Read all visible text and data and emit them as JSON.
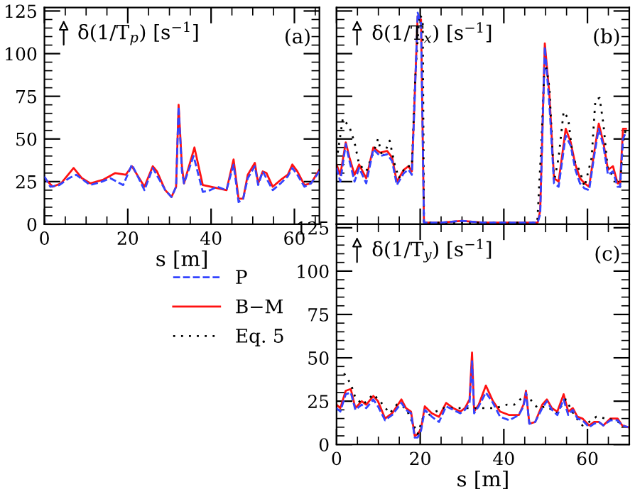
{
  "chart_data": [
    {
      "type": "line",
      "xlabel": "s [m]",
      "xlim": [
        0,
        66
      ],
      "xticks": [
        0,
        20,
        40,
        60
      ],
      "ylim": [
        0,
        127
      ],
      "yticks": [
        0,
        25,
        50,
        75,
        100,
        125
      ],
      "grid": false,
      "legend": false,
      "marker": "none",
      "annotations": [
        "δ(1/T$_{p}$) [s$^{−1}$]",
        "(a)"
      ],
      "series": [
        {
          "color": "#3344ff",
          "line_style": "dashed",
          "x": [
            0,
            1.4,
            3.6,
            5.9,
            7.6,
            9.3,
            11,
            13.8,
            15.8,
            18.9,
            21,
            24,
            26,
            29,
            30.5,
            31.6,
            32.2,
            33,
            33.5,
            35.8,
            38,
            39.8,
            41.5,
            43.7,
            45.4,
            46.6,
            47.7,
            48.8,
            50.5,
            51.3,
            52.4,
            54.8,
            56.7,
            58.4,
            59.5,
            60.7,
            62.4,
            64,
            66
          ],
          "values": [
            28,
            22,
            23,
            27,
            29,
            26,
            23,
            25,
            27,
            23,
            35,
            20,
            33,
            20,
            16,
            22,
            69,
            31,
            24,
            40,
            19,
            20,
            22,
            20,
            35,
            13,
            15,
            27,
            34,
            23,
            31,
            20,
            24,
            28,
            33,
            29,
            22,
            24,
            31
          ]
        },
        {
          "color": "#ff1111",
          "line_style": "solid",
          "x": [
            0,
            2,
            4,
            7,
            9,
            11,
            14,
            17,
            19.5,
            21,
            24,
            26,
            27,
            29,
            30.5,
            31.6,
            32.2,
            33,
            33.5,
            36,
            38,
            40,
            43.7,
            45.4,
            46.6,
            47.7,
            48.8,
            50.5,
            51.3,
            52.4,
            53.3,
            54.8,
            56.7,
            58.4,
            59.5,
            60.7,
            62.4,
            64,
            66
          ],
          "values": [
            27,
            22,
            24,
            33,
            27,
            24,
            26,
            30,
            29,
            34,
            22,
            34,
            31,
            20,
            16,
            22,
            70,
            34,
            24,
            45,
            23,
            22,
            20,
            38,
            15,
            15,
            29,
            36,
            24,
            31,
            30,
            22,
            26,
            29,
            35,
            31,
            23,
            24,
            32
          ]
        }
      ]
    },
    {
      "type": "line",
      "xlim": [
        0,
        70
      ],
      "xticks": [
        0,
        20,
        40,
        60
      ],
      "ylim": [
        0,
        127
      ],
      "yticks": [
        0,
        25,
        50,
        75,
        100,
        125
      ],
      "tick_labels": false,
      "grid": false,
      "legend": false,
      "marker": "none",
      "annotations": [
        "δ(1/T$_{x}$) [s$^{−1}$]",
        "(b)"
      ],
      "series": [
        {
          "color": "#3344ff",
          "line_style": "dashed",
          "x": [
            0,
            0.9,
            2.2,
            3.1,
            4.3,
            5.4,
            7.1,
            8.8,
            10.4,
            12.1,
            13.3,
            14.4,
            16.1,
            17.2,
            18,
            18.7,
            19.4,
            20.2,
            20.9,
            25,
            30,
            35,
            42,
            48.1,
            48.7,
            49.8,
            50.9,
            52,
            53.1,
            54.8,
            56,
            57.1,
            58.2,
            59.3,
            60.4,
            61.6,
            62.7,
            63.8,
            64.9,
            66.1,
            67.2,
            67.8,
            68.5,
            69.2
          ],
          "values": [
            33,
            25,
            47,
            37,
            25,
            33,
            24,
            44,
            40,
            41,
            37,
            23,
            30,
            32,
            29,
            74,
            124,
            118,
            1,
            1,
            2,
            1,
            1,
            1,
            6,
            104,
            70,
            24,
            22,
            52,
            46,
            32,
            24,
            21,
            20,
            40,
            56,
            46,
            29,
            31,
            22,
            22,
            50,
            54
          ]
        },
        {
          "color": "#ff1111",
          "line_style": "solid",
          "x": [
            0,
            0.9,
            2.2,
            3.1,
            4.3,
            5.4,
            7.1,
            8.8,
            10.4,
            12.1,
            13.3,
            14.4,
            16.1,
            17.2,
            18,
            18.7,
            19.4,
            20.2,
            20.9,
            25,
            30,
            35,
            42,
            48.1,
            48.7,
            49.8,
            50.9,
            52,
            53.1,
            54.8,
            56,
            57.1,
            58.2,
            59.3,
            60.4,
            61.6,
            62.7,
            63.8,
            64.9,
            66.1,
            67.2,
            67.8,
            68.5,
            69.2
          ],
          "values": [
            35,
            29,
            48,
            39,
            29,
            35,
            27,
            45,
            42,
            43,
            39,
            25,
            32,
            34,
            31,
            76,
            122,
            120,
            1,
            1,
            2,
            1,
            1,
            1,
            8,
            106,
            76,
            27,
            25,
            56,
            48,
            35,
            27,
            24,
            22,
            42,
            59,
            48,
            32,
            34,
            24,
            24,
            56,
            56
          ]
        },
        {
          "color": "#000000",
          "line_style": "dotted",
          "x": [
            0.3,
            1.5,
            3.1,
            4.3,
            5.4,
            7.1,
            8.8,
            9.9,
            11,
            12.7,
            13.8,
            14.9,
            16.6,
            18,
            18.9,
            19.8,
            20.6,
            20.9,
            30,
            40,
            48,
            49,
            49.8,
            50.9,
            52,
            53.1,
            54.3,
            55.4,
            56.5,
            58.2,
            59.3,
            61,
            61.9,
            62.9,
            63.8,
            64.9,
            66.1,
            67.8,
            68.5,
            69.2
          ],
          "values": [
            42,
            62,
            57,
            48,
            35,
            31,
            42,
            50,
            39,
            49,
            36,
            27,
            34,
            34,
            90,
            123,
            120,
            1,
            1,
            1,
            1,
            48,
            98,
            80,
            25,
            39,
            66,
            62,
            39,
            31,
            22,
            39,
            73,
            74,
            59,
            31,
            29,
            22,
            48,
            56
          ]
        }
      ]
    },
    {
      "type": "line",
      "xlabel": "s [m]",
      "xlim": [
        0,
        70
      ],
      "xticks": [
        0,
        20,
        40,
        60
      ],
      "ylim": [
        0,
        127
      ],
      "yticks": [
        0,
        25,
        50,
        75,
        100,
        125
      ],
      "grid": false,
      "legend": "left",
      "marker": "none",
      "annotations": [
        "δ(1/T$_{y}$) [s$^{−1}$]",
        "(c)"
      ],
      "series": [
        {
          "name": "P",
          "color": "#3344ff",
          "line_style": "dashed",
          "x": [
            0,
            0.9,
            2.2,
            3.4,
            4.5,
            6,
            7.1,
            8.8,
            9.9,
            11.6,
            13.3,
            15.5,
            16.6,
            17.8,
            18.7,
            19.4,
            20.2,
            21.1,
            22.8,
            24.5,
            26.2,
            27.9,
            29.6,
            30.7,
            31.8,
            32.4,
            32.9,
            34,
            35.7,
            37.4,
            39.1,
            41.3,
            43.6,
            44.7,
            45.3,
            46.1,
            47.5,
            49.2,
            50.3,
            51.5,
            52.8,
            54.3,
            55.4,
            56.5,
            57.6,
            58.8,
            60.4,
            61.6,
            62.7,
            63.8,
            65.5,
            67.2,
            68.3,
            69.7
          ],
          "values": [
            21,
            19,
            29,
            30,
            20,
            23,
            21,
            26,
            22,
            14,
            17,
            24,
            20,
            18,
            4,
            4,
            8,
            20,
            16,
            13,
            22,
            20,
            18,
            20,
            24,
            48,
            18,
            22,
            30,
            24,
            16,
            14,
            17,
            22,
            30,
            12,
            13,
            21,
            25,
            20,
            17,
            26,
            17,
            20,
            15,
            14,
            10,
            12,
            13,
            11,
            14,
            14,
            11,
            10
          ]
        },
        {
          "name": "B−M",
          "color": "#ff1111",
          "line_style": "solid",
          "x": [
            0,
            0.9,
            2.2,
            3.4,
            4.5,
            6,
            7.1,
            8.8,
            9.9,
            11.6,
            13.3,
            15.5,
            16.6,
            17.8,
            18.7,
            19.4,
            20.2,
            21.1,
            22.8,
            24.5,
            26.2,
            27.9,
            29.6,
            30.7,
            31.8,
            32.4,
            32.9,
            34,
            35.7,
            37.4,
            39.1,
            41.3,
            43.6,
            44.7,
            45.3,
            46.1,
            47.5,
            49.2,
            50.3,
            51.5,
            52.8,
            54.3,
            55.4,
            56.5,
            57.6,
            58.8,
            60.4,
            61.6,
            62.7,
            63.8,
            65.5,
            67.2,
            68.3,
            69.7
          ],
          "values": [
            23,
            21,
            31,
            32,
            21,
            25,
            23,
            28,
            25,
            15,
            18,
            26,
            21,
            19,
            5,
            6,
            9,
            22,
            18,
            16,
            24,
            21,
            19,
            21,
            26,
            53,
            19,
            23,
            34,
            25,
            19,
            17,
            17,
            23,
            31,
            12,
            13,
            23,
            26,
            21,
            19,
            29,
            19,
            21,
            16,
            15,
            11,
            13,
            13,
            11,
            15,
            15,
            11,
            10
          ]
        },
        {
          "name": "Eq. 5",
          "color": "#000000",
          "line_style": "dotted",
          "x": [
            1.8,
            3.4,
            4.5,
            6.3,
            8.8,
            10.4,
            12.7,
            14.4,
            16.6,
            19.4,
            20.6,
            22.8,
            25.6,
            27.9,
            29.6,
            31.2,
            34.6,
            38,
            40.8,
            42.5,
            45.3,
            48.1,
            50.3,
            52.6,
            54.8,
            57.1,
            58.8,
            60.4,
            62.1,
            64.4,
            66.6,
            68.9
          ],
          "values": [
            41,
            35,
            27,
            23,
            29,
            25,
            18,
            23,
            21,
            6,
            15,
            18,
            21,
            21,
            21,
            21,
            21,
            21,
            23,
            23,
            29,
            21,
            22,
            18,
            26,
            16,
            11,
            13,
            16,
            15,
            14,
            11
          ]
        }
      ]
    }
  ]
}
